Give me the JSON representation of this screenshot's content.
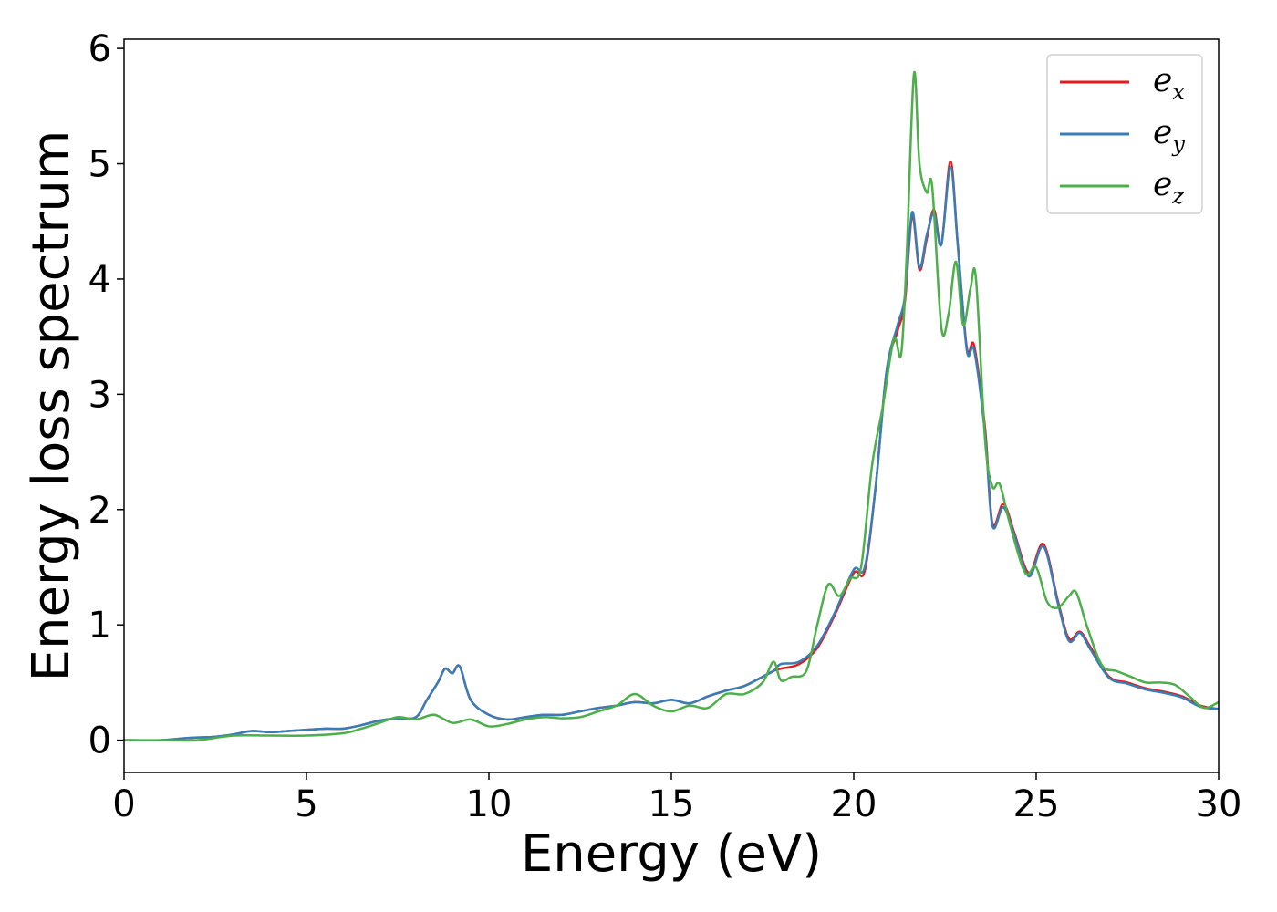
{
  "chart_data": {
    "type": "line",
    "xlabel": "Energy (eV)",
    "ylabel": "Energy loss spectrum",
    "xlim": [
      0,
      30
    ],
    "ylim": [
      -0.28,
      6.08
    ],
    "xticks": [
      "0",
      "5",
      "10",
      "15",
      "20",
      "25",
      "30"
    ],
    "yticks": [
      "0",
      "1",
      "2",
      "3",
      "4",
      "5",
      "6"
    ],
    "grid": false,
    "legend_position": "top-right",
    "series": [
      {
        "name": "e",
        "sub": "x",
        "color": "#e41a1c",
        "x": [
          0,
          1,
          1.8,
          2.5,
          3,
          3.5,
          4,
          4.5,
          5,
          5.5,
          6,
          6.5,
          7,
          7.5,
          8,
          8.3,
          8.6,
          8.8,
          9,
          9.2,
          9.5,
          10,
          10.5,
          11,
          11.5,
          12,
          12.5,
          13,
          13.5,
          14,
          14.5,
          15,
          15.5,
          16,
          16.5,
          17,
          17.5,
          17.8,
          18,
          18.5,
          19,
          19.5,
          20,
          20.3,
          20.6,
          20.9,
          21.2,
          21.4,
          21.6,
          21.8,
          22,
          22.2,
          22.4,
          22.65,
          22.85,
          23.1,
          23.3,
          23.6,
          23.8,
          24.1,
          24.4,
          24.8,
          25.2,
          25.6,
          25.9,
          26.2,
          26.5,
          27,
          27.5,
          28,
          28.5,
          29,
          29.5,
          30
        ],
        "y": [
          0,
          0,
          0.02,
          0.03,
          0.05,
          0.08,
          0.07,
          0.08,
          0.09,
          0.1,
          0.1,
          0.13,
          0.17,
          0.19,
          0.2,
          0.35,
          0.5,
          0.62,
          0.58,
          0.64,
          0.35,
          0.22,
          0.18,
          0.2,
          0.22,
          0.22,
          0.25,
          0.28,
          0.3,
          0.33,
          0.32,
          0.35,
          0.32,
          0.38,
          0.43,
          0.47,
          0.55,
          0.6,
          0.62,
          0.66,
          0.8,
          1.1,
          1.45,
          1.47,
          2.2,
          3.2,
          3.55,
          3.8,
          4.55,
          4.08,
          4.35,
          4.6,
          4.3,
          5.02,
          4.3,
          3.4,
          3.42,
          2.7,
          1.88,
          2.05,
          1.8,
          1.45,
          1.7,
          1.2,
          0.88,
          0.94,
          0.8,
          0.55,
          0.5,
          0.45,
          0.42,
          0.38,
          0.3,
          0.27
        ]
      },
      {
        "name": "e",
        "sub": "y",
        "color": "#377eb8",
        "x": [
          0,
          1,
          1.8,
          2.5,
          3,
          3.5,
          4,
          4.5,
          5,
          5.5,
          6,
          6.5,
          7,
          7.5,
          8,
          8.3,
          8.6,
          8.8,
          9,
          9.2,
          9.5,
          10,
          10.5,
          11,
          11.5,
          12,
          12.5,
          13,
          13.5,
          14,
          14.5,
          15,
          15.5,
          16,
          16.5,
          17,
          17.5,
          17.8,
          18,
          18.5,
          19,
          19.5,
          20,
          20.3,
          20.6,
          20.9,
          21.2,
          21.4,
          21.6,
          21.8,
          22,
          22.2,
          22.4,
          22.65,
          22.85,
          23.1,
          23.3,
          23.6,
          23.8,
          24.1,
          24.4,
          24.8,
          25.2,
          25.6,
          25.9,
          26.2,
          26.5,
          27,
          27.5,
          28,
          28.5,
          29,
          29.5,
          30
        ],
        "y": [
          0,
          0,
          0.02,
          0.03,
          0.05,
          0.08,
          0.07,
          0.08,
          0.09,
          0.1,
          0.1,
          0.13,
          0.17,
          0.19,
          0.2,
          0.35,
          0.5,
          0.62,
          0.58,
          0.64,
          0.35,
          0.22,
          0.18,
          0.2,
          0.22,
          0.22,
          0.25,
          0.28,
          0.3,
          0.33,
          0.32,
          0.35,
          0.32,
          0.38,
          0.43,
          0.47,
          0.55,
          0.6,
          0.66,
          0.68,
          0.82,
          1.12,
          1.48,
          1.5,
          2.2,
          3.2,
          3.6,
          3.85,
          4.58,
          4.1,
          4.38,
          4.57,
          4.3,
          4.97,
          4.3,
          3.38,
          3.38,
          2.65,
          1.86,
          2.02,
          1.78,
          1.42,
          1.68,
          1.18,
          0.86,
          0.93,
          0.78,
          0.54,
          0.49,
          0.44,
          0.41,
          0.37,
          0.29,
          0.27
        ]
      },
      {
        "name": "e",
        "sub": "z",
        "color": "#4daf4a",
        "x": [
          0,
          1,
          2,
          3,
          4,
          5,
          6,
          6.5,
          7,
          7.5,
          8,
          8.5,
          9,
          9.5,
          10,
          10.5,
          11,
          11.5,
          12,
          12.5,
          13,
          13.5,
          14,
          14.5,
          15,
          15.5,
          16,
          16.5,
          17,
          17.5,
          17.8,
          18,
          18.3,
          18.7,
          19,
          19.3,
          19.6,
          19.9,
          20.2,
          20.5,
          20.8,
          21.1,
          21.3,
          21.45,
          21.65,
          21.8,
          22,
          22.15,
          22.4,
          22.6,
          22.8,
          23,
          23.2,
          23.35,
          23.6,
          23.8,
          24,
          24.3,
          24.7,
          25,
          25.3,
          25.6,
          25.9,
          26.1,
          26.4,
          26.8,
          27.2,
          27.6,
          28,
          28.4,
          28.8,
          29.2,
          29.6,
          30
        ],
        "y": [
          0,
          0,
          0,
          0.04,
          0.04,
          0.04,
          0.06,
          0.1,
          0.15,
          0.2,
          0.18,
          0.22,
          0.15,
          0.18,
          0.12,
          0.14,
          0.18,
          0.2,
          0.19,
          0.2,
          0.25,
          0.3,
          0.4,
          0.3,
          0.25,
          0.3,
          0.28,
          0.4,
          0.4,
          0.5,
          0.68,
          0.52,
          0.55,
          0.6,
          1.0,
          1.35,
          1.25,
          1.4,
          1.5,
          2.38,
          2.9,
          3.48,
          3.35,
          4.2,
          5.78,
          5.0,
          4.75,
          4.8,
          3.58,
          3.7,
          4.15,
          3.6,
          3.92,
          4.0,
          2.6,
          2.2,
          2.22,
          1.85,
          1.45,
          1.5,
          1.2,
          1.15,
          1.25,
          1.28,
          0.98,
          0.65,
          0.6,
          0.55,
          0.5,
          0.5,
          0.48,
          0.38,
          0.28,
          0.33
        ]
      }
    ]
  }
}
